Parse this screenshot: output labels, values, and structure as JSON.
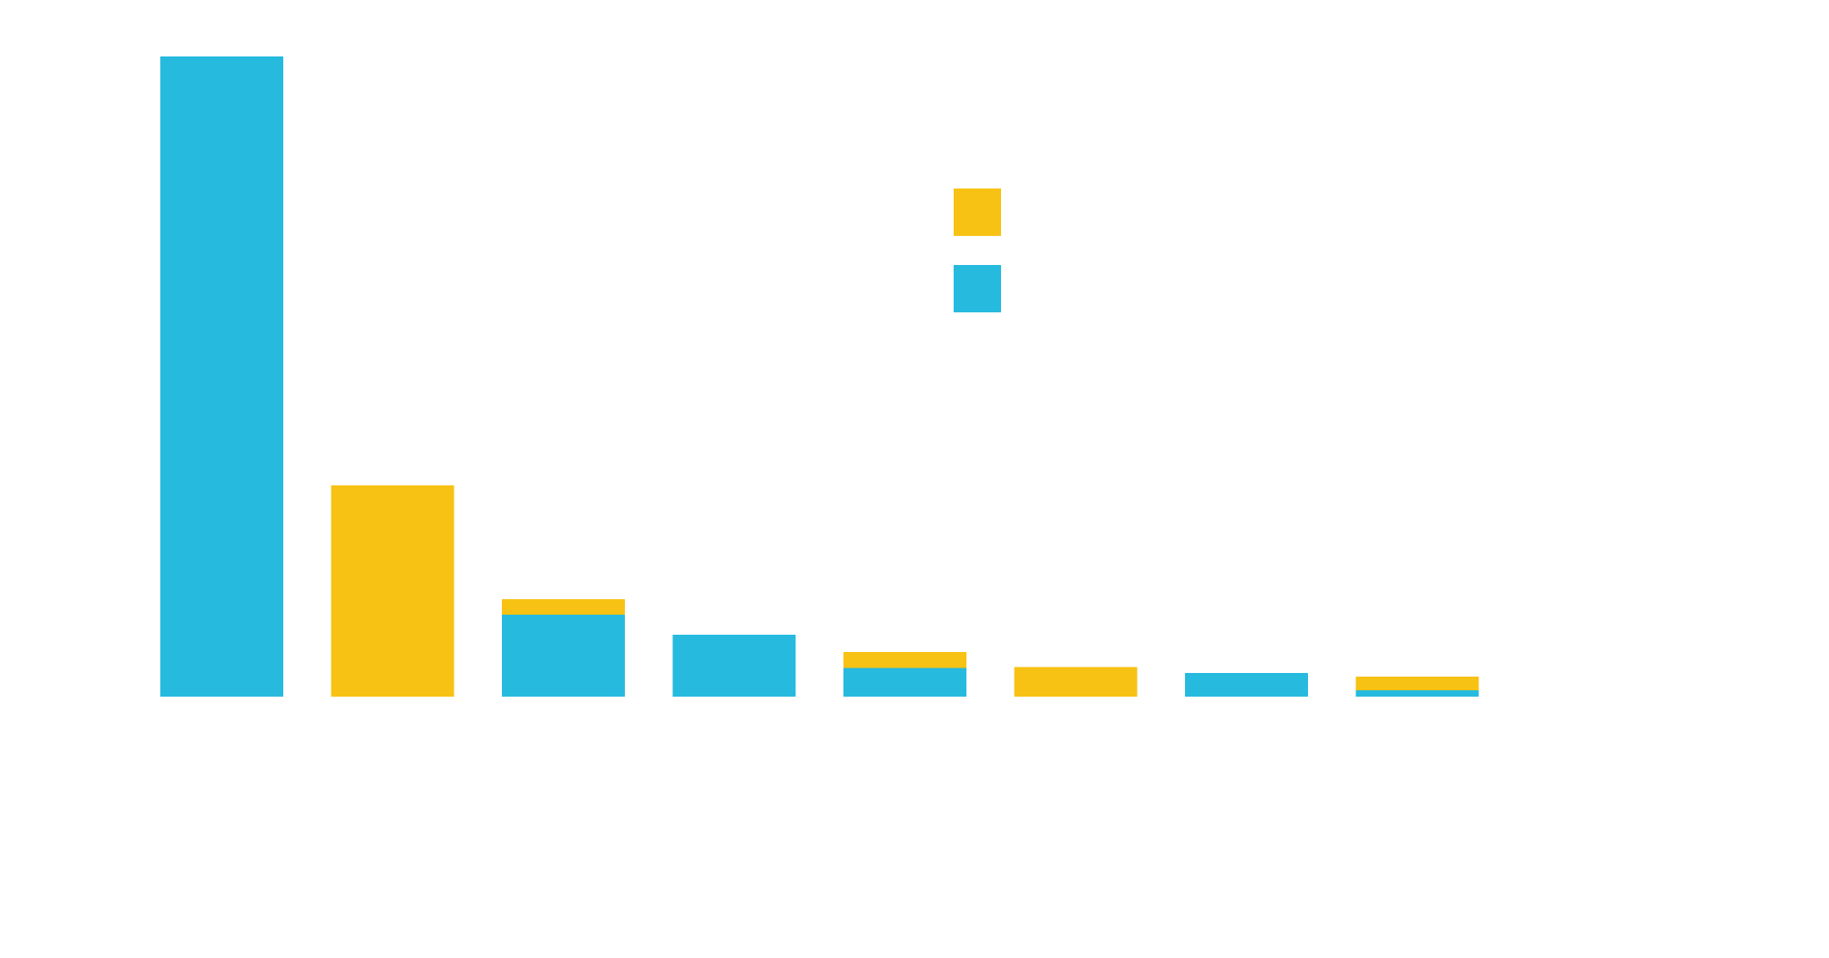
{
  "chart_data": {
    "type": "bar",
    "stacked": true,
    "categories": [
      "",
      "",
      "",
      "",
      "",
      "",
      "",
      ""
    ],
    "series": [
      {
        "color": "#27BADF",
        "values": [
          100,
          0,
          12.8,
          9.7,
          4.5,
          0,
          3.7,
          1
        ]
      },
      {
        "color": "#F7C213",
        "values": [
          0,
          33,
          2.4,
          0,
          2.5,
          4.6,
          0,
          2.1
        ]
      }
    ],
    "legend": {
      "placement": "top-center",
      "entries": [
        {
          "series": 1,
          "label": ""
        },
        {
          "series": 0,
          "label": ""
        }
      ]
    },
    "ylim": [
      0,
      100
    ],
    "grid": false,
    "title": "",
    "xlabel": "",
    "ylabel": ""
  }
}
